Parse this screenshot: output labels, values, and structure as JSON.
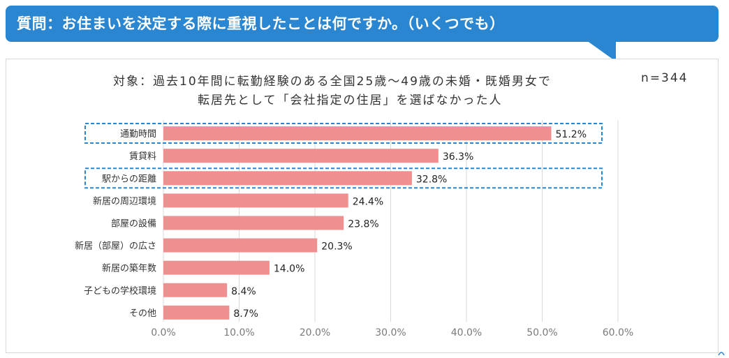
{
  "header": {
    "question": "質問：お住まいを決定する際に重視したことは何ですか。（いくつでも）"
  },
  "subtitle": {
    "line1": "対象：過去10年間に転勤経験のある全国25歳～49歳の未婚・既婚男女で",
    "line2": "転居先として「会社指定の住居」を選ばなかった人",
    "n": "n=344"
  },
  "colors": {
    "header": "#2a86d0",
    "bar": "#ef8f8f",
    "highlight": "#2a86d0",
    "grid": "#d9d9d9"
  },
  "chart_data": {
    "type": "bar",
    "orientation": "horizontal",
    "title": "",
    "xlabel": "",
    "ylabel": "",
    "xlim": [
      0,
      60
    ],
    "ticks": [
      "0.0%",
      "10.0%",
      "20.0%",
      "30.0%",
      "40.0%",
      "50.0%",
      "60.0%"
    ],
    "tick_values": [
      0,
      10,
      20,
      30,
      40,
      50,
      60
    ],
    "categories": [
      "通勤時間",
      "賃貸料",
      "駅からの距離",
      "新居の周辺環境",
      "部屋の設備",
      "新居（部屋）の広さ",
      "新居の築年数",
      "子どもの学校環境",
      "その他"
    ],
    "values": [
      51.2,
      36.3,
      32.8,
      24.4,
      23.8,
      20.3,
      14.0,
      8.4,
      8.7
    ],
    "value_labels": [
      "51.2%",
      "36.3%",
      "32.8%",
      "24.4%",
      "23.8%",
      "20.3%",
      "14.0%",
      "8.4%",
      "8.7%"
    ],
    "highlighted": [
      "通勤時間",
      "駅からの距離"
    ],
    "grid": true
  }
}
